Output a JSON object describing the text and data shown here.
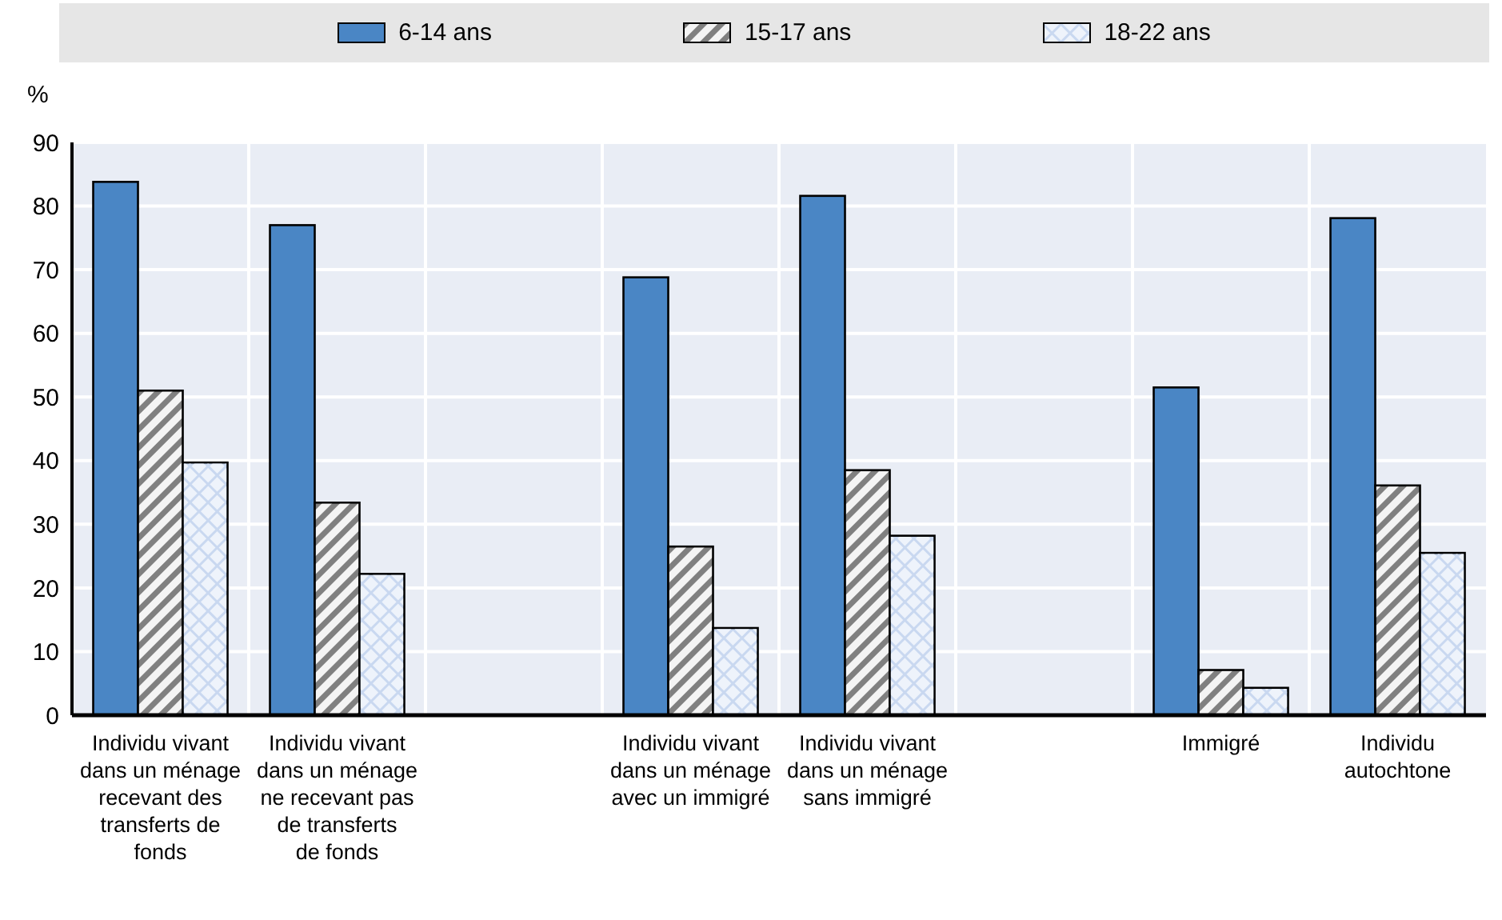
{
  "chart_data": {
    "type": "bar",
    "ylabel": "%",
    "categories": [
      "Individu vivant dans un ménage recevant des transferts de fonds",
      "Individu vivant dans un ménage ne recevant pas de transferts de fonds",
      null,
      "Individu vivant dans un ménage avec un immigré",
      "Individu vivant dans un ménage sans immigré",
      null,
      "Immigré",
      "Individu autochtone"
    ],
    "series": [
      {
        "name": "6-14 ans",
        "color": "#4a86c5",
        "values": [
          83.8,
          77.0,
          null,
          68.8,
          81.6,
          null,
          51.5,
          78.1
        ]
      },
      {
        "name": "15-17 ans",
        "color": "#808080",
        "values": [
          51.0,
          33.4,
          null,
          26.5,
          38.5,
          null,
          7.1,
          36.1
        ]
      },
      {
        "name": "18-22 ans",
        "color": "#c9d8f0",
        "values": [
          39.7,
          22.2,
          null,
          13.7,
          28.2,
          null,
          4.3,
          25.5
        ]
      }
    ],
    "ylim": [
      0,
      90
    ],
    "yticks": [
      0,
      10,
      20,
      30,
      40,
      50,
      60,
      70,
      80,
      90
    ],
    "grid": true,
    "legend": "top"
  }
}
